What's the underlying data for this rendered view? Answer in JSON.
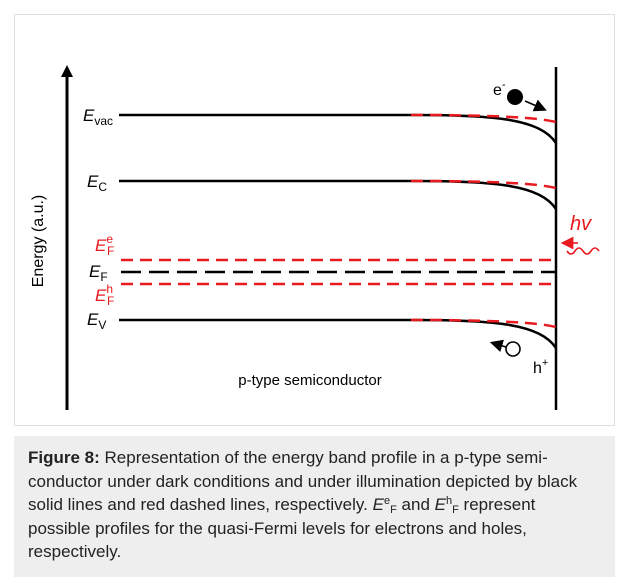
{
  "diagram": {
    "axis_label": "Energy (a.u.)",
    "levels": {
      "evac": {
        "base": "E",
        "sub": "vac"
      },
      "ec": {
        "base": "E",
        "sub": "C"
      },
      "efe": {
        "base": "E",
        "sup": "e",
        "sub": "F"
      },
      "ef": {
        "base": "E",
        "sub": "F"
      },
      "efh": {
        "base": "E",
        "sup": "h",
        "sub": "F"
      },
      "ev": {
        "base": "E",
        "sub": "V"
      }
    },
    "photon_label": "hv",
    "electron_label": {
      "base": "e",
      "sup": "-"
    },
    "hole_label": {
      "base": "h",
      "sup": "+"
    },
    "material_label": "p-type semiconductor",
    "colors": {
      "dark": "#000000",
      "light": "#e8191f"
    }
  },
  "caption": {
    "label": "Figure 8:",
    "part1": " Representation of the energy band profile in a p-type semi-conductor under dark conditions and under illumination depicted by black solid lines and red dashed lines, respectively. ",
    "efe_base": "E",
    "efe_sup": "e",
    "efe_sub": "F",
    "and_text": " and ",
    "efh_base": "E",
    "efh_sup": "h",
    "efh_sub": "F",
    "part2": " represent possible profiles for the quasi-Fermi levels for electrons and holes, respectively."
  }
}
